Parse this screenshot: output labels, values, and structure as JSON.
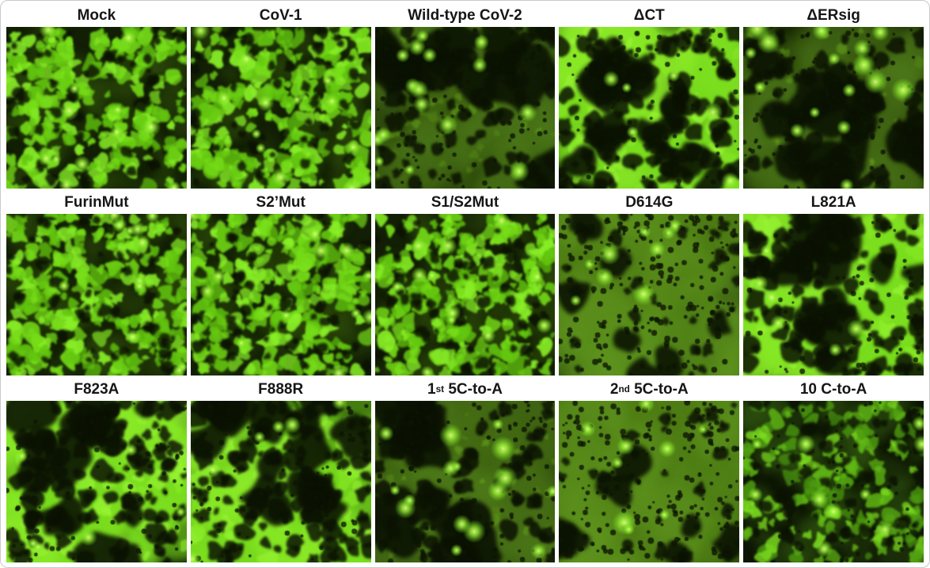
{
  "figure": {
    "colors": {
      "fluorescence_green_bright": "#7ee01c",
      "fluorescence_green_dim": "#466e15",
      "micrograph_background": "#0e1803",
      "label_text": "#161616",
      "page_background": "#ffffff",
      "figure_border": "#c9c9c9"
    },
    "rows": [
      {
        "panels": [
          {
            "label": "Mock",
            "appearance": "dense-bright-cells"
          },
          {
            "label": "CoV-1",
            "appearance": "dense-bright-cells"
          },
          {
            "label": "Wild-type CoV-2",
            "appearance": "dim-syncytia"
          },
          {
            "label": "ΔCT",
            "appearance": "bright-syncytia"
          },
          {
            "label": "ΔERsig",
            "appearance": "dim-syncytia"
          }
        ]
      },
      {
        "panels": [
          {
            "label": "FurinMut",
            "appearance": "dense-bright-cells"
          },
          {
            "label": "S2’Mut",
            "appearance": "dense-bright-cells"
          },
          {
            "label": "S1/S2Mut",
            "appearance": "dense-bright-cells"
          },
          {
            "label": "D614G",
            "appearance": "diffuse-syncytia"
          },
          {
            "label": "L821A",
            "appearance": "bright-syncytia"
          }
        ]
      },
      {
        "panels": [
          {
            "label": "F823A",
            "appearance": "bright-syncytia"
          },
          {
            "label": "F888R",
            "appearance": "bright-syncytia"
          },
          {
            "label": "1st 5C-to-A",
            "parts": {
              "base": "1",
              "sup": "st",
              "rest": " 5C-to-A"
            },
            "appearance": "dim-syncytia"
          },
          {
            "label": "2nd 5C-to-A",
            "parts": {
              "base": "2",
              "sup": "nd",
              "rest": " 5C-to-A"
            },
            "appearance": "diffuse-syncytia"
          },
          {
            "label": "10 C-to-A",
            "appearance": "medium-cells"
          }
        ]
      }
    ]
  }
}
